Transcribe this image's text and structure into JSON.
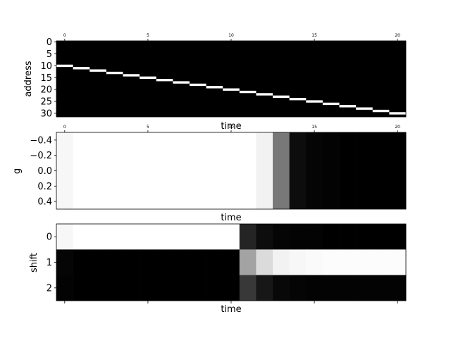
{
  "chart_data": [
    {
      "type": "heatmap",
      "ylabel": "address",
      "xlabel": "time",
      "x_ticks": [
        "0",
        "5",
        "10",
        "15",
        "20"
      ],
      "y_ticks": [
        "0",
        "5",
        "10",
        "15",
        "20",
        "25",
        "30"
      ],
      "n_time": 21,
      "n_rows": 32,
      "colormap": "gray",
      "active_address": [
        10,
        11,
        12,
        13,
        14,
        15,
        16,
        17,
        18,
        19,
        20,
        21,
        22,
        23,
        24,
        25,
        26,
        27,
        28,
        29,
        30
      ],
      "description_values": "binary weighting: value 1 at active_address for each time step, 0 elsewhere"
    },
    {
      "type": "heatmap",
      "ylabel": "g",
      "xlabel": "time",
      "x_ticks": [
        "0",
        "5",
        "10",
        "15",
        "20"
      ],
      "y_ticks": [
        "−0.4",
        "−0.2",
        "0.0",
        "0.2",
        "0.4"
      ],
      "ylim": [
        -0.5,
        0.5
      ],
      "n_time": 21,
      "colormap": "gray",
      "values": [
        0.97,
        1.0,
        1.0,
        1.0,
        1.0,
        1.0,
        1.0,
        1.0,
        1.0,
        1.0,
        1.0,
        1.0,
        0.95,
        0.47,
        0.05,
        0.02,
        0.01,
        0.0,
        0.0,
        0.0,
        0.0
      ]
    },
    {
      "type": "heatmap",
      "ylabel": "shift",
      "xlabel": "time",
      "y_ticks": [
        "0",
        "1",
        "2"
      ],
      "n_time": 21,
      "colormap": "gray",
      "values": [
        [
          0.97,
          1.0,
          1.0,
          1.0,
          1.0,
          1.0,
          1.0,
          1.0,
          1.0,
          1.0,
          1.0,
          0.14,
          0.05,
          0.02,
          0.01,
          0.01,
          0.0,
          0.0,
          0.0,
          0.0,
          0.0
        ],
        [
          0.02,
          0.0,
          0.0,
          0.0,
          0.0,
          0.0,
          0.0,
          0.0,
          0.0,
          0.0,
          0.0,
          0.64,
          0.86,
          0.95,
          0.97,
          0.98,
          0.99,
          0.99,
          0.99,
          0.99,
          0.99
        ],
        [
          0.01,
          0.0,
          0.0,
          0.0,
          0.0,
          0.0,
          0.0,
          0.0,
          0.0,
          0.0,
          0.0,
          0.22,
          0.09,
          0.03,
          0.02,
          0.01,
          0.01,
          0.01,
          0.01,
          0.01,
          0.01
        ]
      ]
    }
  ]
}
